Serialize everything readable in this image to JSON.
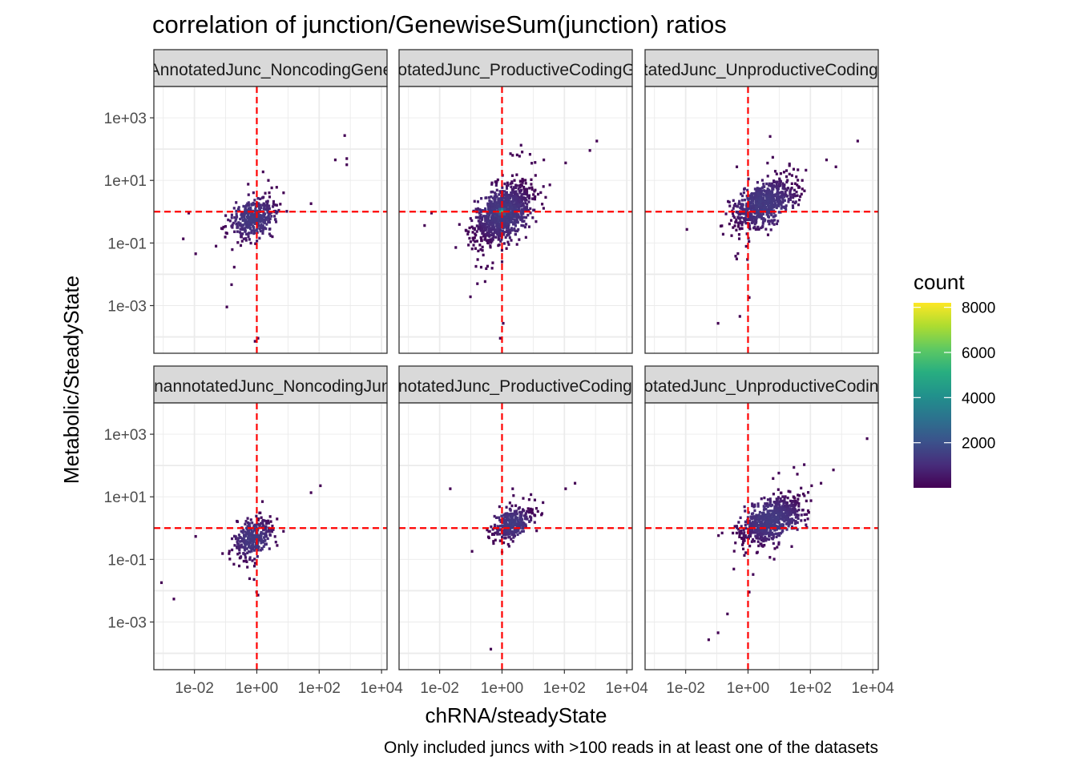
{
  "chart_data": {
    "type": "heatmap",
    "title": "correlation of junction/GenewiseSum(junction) ratios",
    "xlabel": "chRNA/steadyState",
    "ylabel": "Metabolic/SteadyState",
    "caption": "Only included juncs with >100 reads in at least one of the datasets",
    "x_scale": "log10",
    "y_scale": "log10",
    "xlim": [
      0.0005,
      15000
    ],
    "ylim": [
      3e-05,
      10000
    ],
    "x_ticks": [
      0.01,
      1,
      100,
      10000
    ],
    "x_tick_labels": [
      "1e-02",
      "1e+00",
      "1e+02",
      "1e+04"
    ],
    "y_ticks": [
      0.001,
      0.1,
      10,
      1000
    ],
    "y_tick_labels": [
      "1e-03",
      "1e-01",
      "1e+01",
      "1e+03"
    ],
    "reference_lines": {
      "x": 1,
      "y": 1,
      "color": "#ff0000",
      "style": "dashed"
    },
    "grid": true,
    "legend": {
      "title": "count",
      "position": "right",
      "colormap": "viridis",
      "breaks": [
        2000,
        4000,
        6000,
        8000
      ],
      "break_labels": [
        "2000",
        "4000",
        "6000",
        "8000"
      ],
      "range": [
        1,
        8200
      ]
    },
    "panels": [
      {
        "strip": "AnnotatedJunc_NoncodingGene",
        "center": [
          0.7,
          0.7
        ],
        "spread": [
          0.55,
          0.5
        ],
        "corr": 0.35,
        "n": 380,
        "hot": 0,
        "outliers": [
          [
            600,
            300
          ],
          [
            700,
            35
          ],
          [
            700,
            55
          ],
          [
            300,
            50
          ],
          [
            0.004,
            0.15
          ],
          [
            0.01,
            0.05
          ],
          [
            0.1,
            0.001
          ],
          [
            1,
            0.0001
          ],
          [
            0.8,
            8e-05
          ],
          [
            50,
            2
          ],
          [
            0.006,
            1
          ]
        ]
      },
      {
        "strip": "AnnotatedJunc_ProductiveCodingGene",
        "center": [
          1,
          1
        ],
        "spread": [
          0.65,
          0.6
        ],
        "corr": 0.5,
        "n": 1050,
        "hot": 1,
        "outliers": [
          [
            1000,
            200
          ],
          [
            600,
            100
          ],
          [
            100,
            40
          ],
          [
            20,
            50
          ],
          [
            2,
            70
          ],
          [
            0.005,
            1
          ],
          [
            0.003,
            0.4
          ],
          [
            1,
            0.0003
          ],
          [
            0.8,
            0.0001
          ]
        ]
      },
      {
        "strip": "AnnotatedJunc_UnproductiveCodingGene",
        "center": [
          3,
          2
        ],
        "spread": [
          0.7,
          0.55
        ],
        "corr": 0.55,
        "n": 700,
        "hot": 0,
        "outliers": [
          [
            3000,
            200
          ],
          [
            300,
            50
          ],
          [
            600,
            30
          ],
          [
            0.1,
            0.0003
          ],
          [
            0.4,
            30
          ],
          [
            0.01,
            0.3
          ],
          [
            1,
            0.002
          ],
          [
            0.5,
            0.0005
          ]
        ]
      },
      {
        "strip": "UnannotatedJunc_NoncodingJunc",
        "center": [
          0.7,
          0.5
        ],
        "spread": [
          0.45,
          0.45
        ],
        "corr": 0.35,
        "n": 320,
        "hot": 0,
        "outliers": [
          [
            0.0008,
            0.02
          ],
          [
            0.002,
            0.006
          ],
          [
            100,
            25
          ],
          [
            50,
            15
          ],
          [
            0.01,
            0.6
          ],
          [
            1,
            0.008
          ],
          [
            0.9,
            0.01
          ]
        ]
      },
      {
        "strip": "UnannotatedJunc_ProductiveCodingGene",
        "center": [
          2,
          1.5
        ],
        "spread": [
          0.45,
          0.35
        ],
        "corr": 0.5,
        "n": 330,
        "hot": 0,
        "outliers": [
          [
            0.02,
            20
          ],
          [
            0.4,
            0.00015
          ],
          [
            0.1,
            0.2
          ],
          [
            100,
            20
          ],
          [
            200,
            30
          ]
        ]
      },
      {
        "strip": "UnannotatedJunc_UnproductiveCodingGene",
        "center": [
          5,
          2
        ],
        "spread": [
          0.7,
          0.5
        ],
        "corr": 0.55,
        "n": 720,
        "hot": 0,
        "outliers": [
          [
            6000,
            800
          ],
          [
            200,
            30
          ],
          [
            100,
            25
          ],
          [
            1,
            0.01
          ],
          [
            0.2,
            0.002
          ],
          [
            0.1,
            0.0005
          ],
          [
            0.05,
            0.0003
          ],
          [
            500,
            80
          ]
        ]
      }
    ]
  }
}
